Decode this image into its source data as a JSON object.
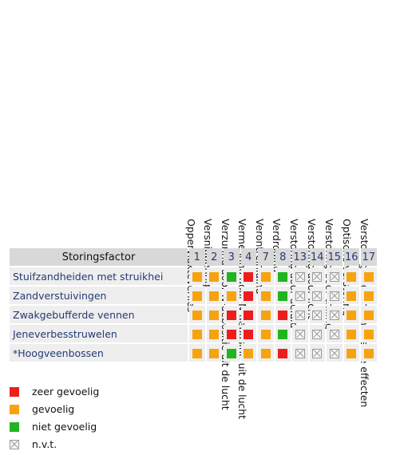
{
  "columns": [
    {
      "num": "1",
      "label": "Oppervlakteverlies"
    },
    {
      "num": "2",
      "label": "Versnippering"
    },
    {
      "num": "3",
      "label": "Verzuring door N-depositie uit de lucht"
    },
    {
      "num": "4",
      "label": "Vermesting door N-depositie uit de lucht"
    },
    {
      "num": "7",
      "label": "Verontreiniging"
    },
    {
      "num": "8",
      "label": "Verdroging"
    },
    {
      "num": "13",
      "label": "Verstoring door geluid"
    },
    {
      "num": "14",
      "label": "Verstoring door licht"
    },
    {
      "num": "15",
      "label": "Verstoring door trilling"
    },
    {
      "num": "16",
      "label": "Optische verstoring"
    },
    {
      "num": "17",
      "label": "Verstoring door mechanische effecten"
    }
  ],
  "header_factor": "Storingsfactor",
  "rows": [
    {
      "name": "Stuifzandheiden met struikhei",
      "cells": [
        "gev",
        "gev",
        "niet",
        "zeer",
        "gev",
        "niet",
        "nvt",
        "nvt",
        "nvt",
        "gev",
        "gev"
      ]
    },
    {
      "name": "Zandverstuivingen",
      "cells": [
        "gev",
        "gev",
        "gev",
        "zeer",
        "gev",
        "niet",
        "nvt",
        "nvt",
        "nvt",
        "gev",
        "gev"
      ]
    },
    {
      "name": "Zwakgebufferde vennen",
      "cells": [
        "gev",
        "gev",
        "zeer",
        "zeer",
        "gev",
        "zeer",
        "nvt",
        "nvt",
        "nvt",
        "gev",
        "gev"
      ]
    },
    {
      "name": "Jeneverbesstruwelen",
      "cells": [
        "gev",
        "gev",
        "zeer",
        "zeer",
        "gev",
        "niet",
        "nvt",
        "nvt",
        "nvt",
        "gev",
        "gev"
      ]
    },
    {
      "name": "*Hoogveenbossen",
      "cells": [
        "gev",
        "gev",
        "niet",
        "gev",
        "gev",
        "zeer",
        "nvt",
        "nvt",
        "nvt",
        "gev",
        "gev"
      ]
    }
  ],
  "legend": [
    {
      "key": "zeer",
      "label": "zeer gevoelig",
      "color": "#ee1d1d"
    },
    {
      "key": "gev",
      "label": "gevoelig",
      "color": "#f7a30f"
    },
    {
      "key": "niet",
      "label": "niet gevoelig",
      "color": "#22b41f"
    },
    {
      "key": "nvt",
      "label": "n.v.t.",
      "icon": "not-applicable-box-icon"
    }
  ]
}
